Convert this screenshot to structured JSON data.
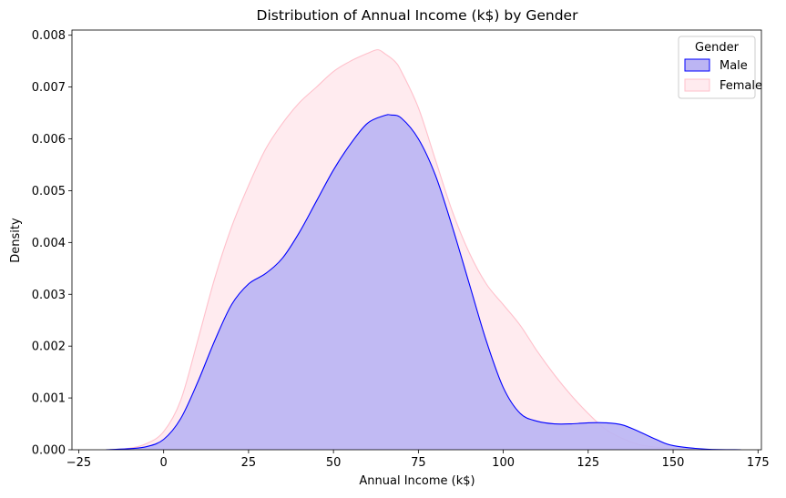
{
  "chart_data": {
    "type": "area",
    "title": "Distribution of Annual Income (k$) by Gender",
    "xlabel": "Annual Income (k$)",
    "ylabel": "Density",
    "xlim": [
      -27,
      176
    ],
    "ylim": [
      0,
      0.0081
    ],
    "xticks": [
      -25,
      0,
      25,
      50,
      75,
      100,
      125,
      150,
      175
    ],
    "xtick_labels": [
      "−25",
      "0",
      "25",
      "50",
      "75",
      "100",
      "125",
      "150",
      "175"
    ],
    "yticks": [
      0,
      0.001,
      0.002,
      0.003,
      0.004,
      0.005,
      0.006,
      0.007,
      0.008
    ],
    "ytick_labels": [
      "0.000",
      "0.001",
      "0.002",
      "0.003",
      "0.004",
      "0.005",
      "0.006",
      "0.007",
      "0.008"
    ],
    "grid": false,
    "legend": {
      "title": "Gender",
      "placement": "top-right",
      "entries": [
        "Male",
        "Female"
      ]
    },
    "series": [
      {
        "name": "Female",
        "color": "#ffc0cb",
        "x": [
          -16,
          -10,
          -5,
          0,
          5,
          10,
          15,
          20,
          25,
          30,
          35,
          40,
          45,
          50,
          55,
          60,
          63,
          65,
          68,
          70,
          75,
          80,
          85,
          90,
          95,
          100,
          105,
          110,
          115,
          120,
          125,
          130,
          135,
          140,
          145,
          150,
          160,
          169
        ],
        "y": [
          0.0,
          3e-05,
          0.00012,
          0.00035,
          0.00095,
          0.0021,
          0.0033,
          0.0043,
          0.0051,
          0.0058,
          0.0063,
          0.0067,
          0.007,
          0.0073,
          0.0075,
          0.00765,
          0.00772,
          0.00765,
          0.0075,
          0.0073,
          0.0066,
          0.0056,
          0.0046,
          0.0038,
          0.0032,
          0.0028,
          0.0024,
          0.0019,
          0.00145,
          0.00105,
          0.0007,
          0.0004,
          0.00022,
          0.0001,
          5e-05,
          2e-05,
          0.0,
          0.0
        ]
      },
      {
        "name": "Male",
        "color": "#0000ff",
        "x": [
          -17,
          -10,
          -5,
          0,
          5,
          10,
          15,
          20,
          25,
          30,
          35,
          40,
          45,
          50,
          55,
          60,
          65,
          67,
          70,
          75,
          80,
          85,
          90,
          95,
          100,
          105,
          110,
          115,
          120,
          125,
          130,
          135,
          140,
          145,
          150,
          160,
          170
        ],
        "y": [
          0.0,
          2e-05,
          6e-05,
          0.0002,
          0.0006,
          0.0013,
          0.0021,
          0.0028,
          0.0032,
          0.0034,
          0.0037,
          0.0042,
          0.0048,
          0.0054,
          0.0059,
          0.0063,
          0.00645,
          0.00646,
          0.0064,
          0.006,
          0.0053,
          0.0043,
          0.0032,
          0.0021,
          0.0012,
          0.0007,
          0.00055,
          0.0005,
          0.0005,
          0.00052,
          0.00052,
          0.00048,
          0.00035,
          0.0002,
          8e-05,
          1e-05,
          0.0
        ]
      }
    ],
    "male_fill": "#bcb5f3",
    "female_fill": "#ffebef"
  }
}
